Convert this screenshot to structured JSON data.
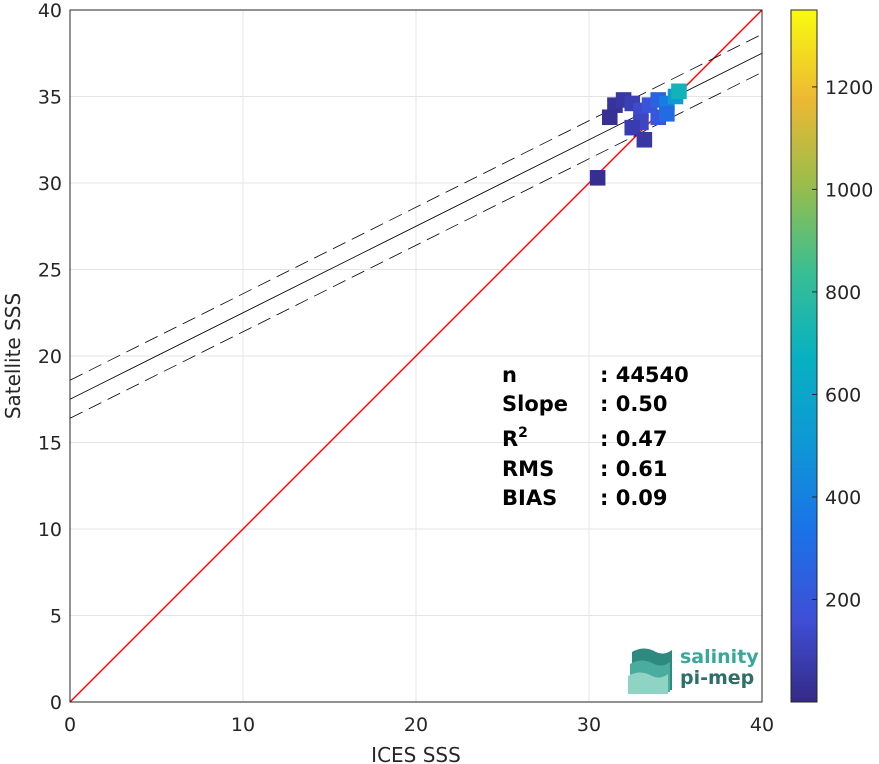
{
  "chart_data": {
    "type": "heatmap",
    "xlabel": "ICES SSS",
    "ylabel": "Satellite SSS",
    "xlim": [
      0,
      40
    ],
    "ylim": [
      0,
      40
    ],
    "xticks": [
      0,
      10,
      20,
      30,
      40
    ],
    "yticks": [
      0,
      5,
      10,
      15,
      20,
      25,
      30,
      35,
      40
    ],
    "grid": true,
    "colorbar": {
      "range": [
        0,
        1350
      ],
      "ticks": [
        200,
        400,
        600,
        800,
        1000,
        1200
      ],
      "colormap": "parula"
    },
    "identity_line": {
      "x": [
        0,
        40
      ],
      "y": [
        0,
        40
      ],
      "color": "#ff0000"
    },
    "fit_line": {
      "intercept": 17.5,
      "slope": 0.5,
      "band": 1.1,
      "color": "#000000"
    },
    "density_cells": [
      {
        "x": 31.5,
        "y": 34.5,
        "count": 40
      },
      {
        "x": 32.0,
        "y": 34.8,
        "count": 60
      },
      {
        "x": 32.5,
        "y": 34.6,
        "count": 90
      },
      {
        "x": 33.0,
        "y": 34.2,
        "count": 140
      },
      {
        "x": 33.5,
        "y": 34.5,
        "count": 180
      },
      {
        "x": 34.0,
        "y": 34.8,
        "count": 260
      },
      {
        "x": 34.5,
        "y": 34.6,
        "count": 380
      },
      {
        "x": 35.0,
        "y": 35.0,
        "count": 520
      },
      {
        "x": 35.2,
        "y": 35.3,
        "count": 700
      },
      {
        "x": 33.0,
        "y": 33.5,
        "count": 120
      },
      {
        "x": 32.5,
        "y": 33.2,
        "count": 80
      },
      {
        "x": 34.0,
        "y": 33.8,
        "count": 200
      },
      {
        "x": 34.5,
        "y": 34.0,
        "count": 300
      },
      {
        "x": 30.5,
        "y": 30.3,
        "count": 20
      },
      {
        "x": 33.2,
        "y": 32.5,
        "count": 60
      },
      {
        "x": 31.2,
        "y": 33.8,
        "count": 30
      }
    ],
    "stats": [
      {
        "label": "n",
        "value": ": 44540"
      },
      {
        "label": "Slope",
        "value": ": 0.50"
      },
      {
        "label": "R",
        "sup": "2",
        "value": ": 0.47"
      },
      {
        "label": "RMS",
        "value": ": 0.61"
      },
      {
        "label": "BIAS",
        "value": ": 0.09"
      }
    ]
  },
  "logo": {
    "line1": "salinity",
    "line2": "pi-mep"
  }
}
